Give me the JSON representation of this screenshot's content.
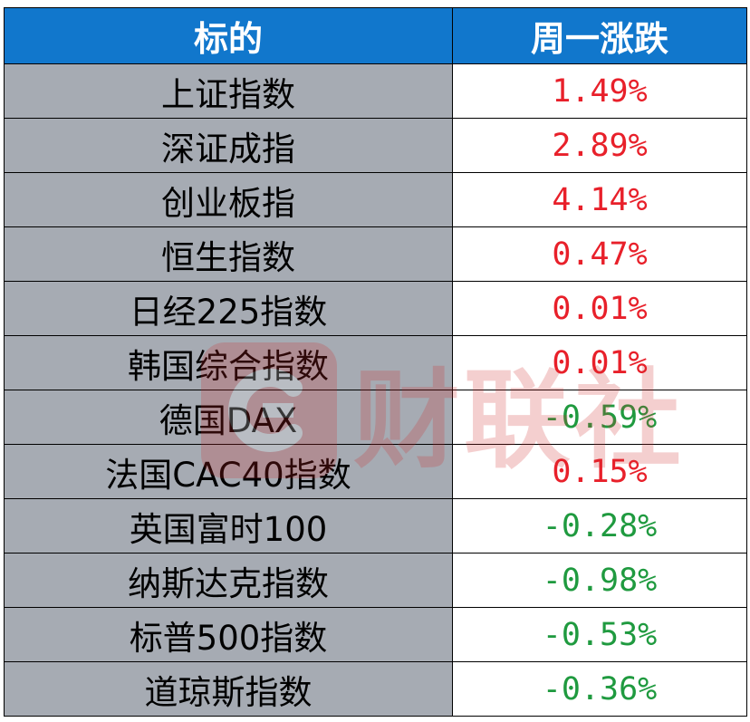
{
  "table": {
    "headers": {
      "name": "标的",
      "change": "周一涨跌"
    },
    "rows": [
      {
        "name": "上证指数",
        "change": "1.49%",
        "direction": "up"
      },
      {
        "name": "深证成指",
        "change": "2.89%",
        "direction": "up"
      },
      {
        "name": "创业板指",
        "change": "4.14%",
        "direction": "up"
      },
      {
        "name": "恒生指数",
        "change": "0.47%",
        "direction": "up"
      },
      {
        "name": "日经225指数",
        "change": "0.01%",
        "direction": "up"
      },
      {
        "name": "韩国综合指数",
        "change": "0.01%",
        "direction": "up"
      },
      {
        "name": "德国DAX",
        "change": "-0.59%",
        "direction": "down"
      },
      {
        "name": "法国CAC40指数",
        "change": "0.15%",
        "direction": "up"
      },
      {
        "name": "英国富时100",
        "change": "-0.28%",
        "direction": "down"
      },
      {
        "name": "纳斯达克指数",
        "change": "-0.98%",
        "direction": "down"
      },
      {
        "name": "标普500指数",
        "change": "-0.53%",
        "direction": "down"
      },
      {
        "name": "道琼斯指数",
        "change": "-0.36%",
        "direction": "down"
      }
    ]
  },
  "watermark": {
    "text": "财联社",
    "icon": "cls-logo-icon"
  },
  "colors": {
    "header_bg": "#1177cc",
    "name_cell_bg": "#a6abb3",
    "up": "#e8202a",
    "down": "#1f9a3f"
  }
}
